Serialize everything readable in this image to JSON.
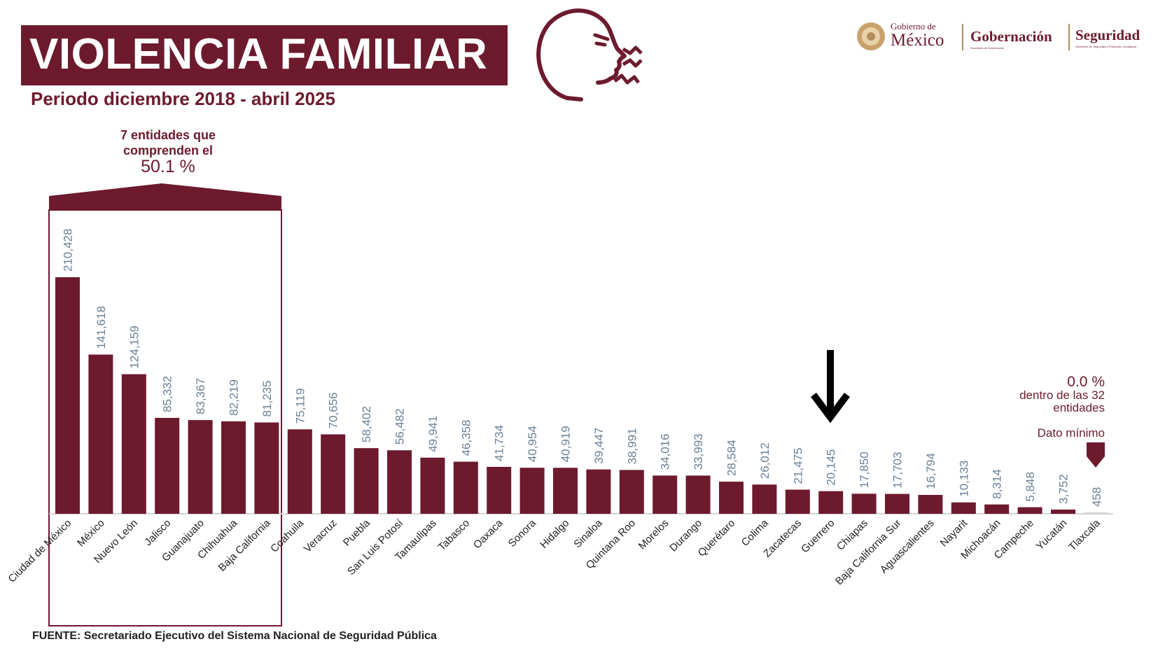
{
  "header": {
    "title": "VIOLENCIA FAMILIAR",
    "subtitle": "Periodo diciembre 2018 - abril 2025",
    "icon": "speaking-face-icon"
  },
  "logos": {
    "gobierno_small": "Gobierno de",
    "gobierno_big": "México",
    "gobernacion": "Gobernación",
    "gobernacion_sub": "Secretaría de Gobernación",
    "seguridad": "Seguridad",
    "seguridad_sub": "Secretaría de Seguridad y Protección Ciudadana"
  },
  "annotations": {
    "group_label": "7 entidades que comprenden el",
    "group_percent": "50.1 %",
    "min_percent": "0.0 %",
    "min_note": "dentro de las 32 entidades",
    "min_label": "Dato mínimo",
    "highlight_arrow": "down-arrow-icon"
  },
  "source": "FUENTE: Secretariado Ejecutivo del Sistema Nacional de Seguridad Pública",
  "colors": {
    "bar": "#6d1a2e",
    "value_label": "#6b7f95",
    "min_bar": "#d9d3d6"
  },
  "chart_data": {
    "type": "bar",
    "title": "VIOLENCIA FAMILIAR",
    "subtitle": "Periodo diciembre 2018 - abril 2025",
    "categories": [
      "Ciudad de México",
      "México",
      "Nuevo León",
      "Jalisco",
      "Guanajuato",
      "Chihuahua",
      "Baja California",
      "Coahuila",
      "Veracruz",
      "Puebla",
      "San Luis Potosí",
      "Tamaulipas",
      "Tabasco",
      "Oaxaca",
      "Sonora",
      "Hidalgo",
      "Sinaloa",
      "Quintana Roo",
      "Morelos",
      "Durango",
      "Querétaro",
      "Colima",
      "Zacatecas",
      "Guerrero",
      "Chiapas",
      "Baja California Sur",
      "Aguascalientes",
      "Nayarit",
      "Michoacán",
      "Campeche",
      "Yucatán",
      "Tlaxcala"
    ],
    "values": [
      210428,
      141618,
      124159,
      85332,
      83367,
      82219,
      81235,
      75119,
      70656,
      58402,
      56482,
      49941,
      46358,
      41734,
      40954,
      40919,
      39447,
      38991,
      34016,
      33993,
      28584,
      26012,
      21475,
      20145,
      17850,
      17703,
      16794,
      10133,
      8314,
      5848,
      3752,
      458
    ],
    "value_labels": [
      "210,428",
      "141,618",
      "124,159",
      "85,332",
      "83,367",
      "82,219",
      "81,235",
      "75,119",
      "70,656",
      "58,402",
      "56,482",
      "49,941",
      "46,358",
      "41,734",
      "40,954",
      "40,919",
      "39,447",
      "38,991",
      "34,016",
      "33,993",
      "28,584",
      "26,012",
      "21,475",
      "20,145",
      "17,850",
      "17,703",
      "16,794",
      "10,133",
      "8,314",
      "5,848",
      "3,752",
      "458"
    ],
    "ylim": [
      0,
      210428
    ],
    "xlabel": "",
    "ylabel": "",
    "grid": false,
    "legend": "none",
    "highlighted_group": [
      "Ciudad de México",
      "México",
      "Nuevo León",
      "Jalisco",
      "Guanajuato",
      "Chihuahua",
      "Baja California"
    ],
    "highlighted_bar": "Guerrero",
    "minimum_bar": "Tlaxcala"
  }
}
